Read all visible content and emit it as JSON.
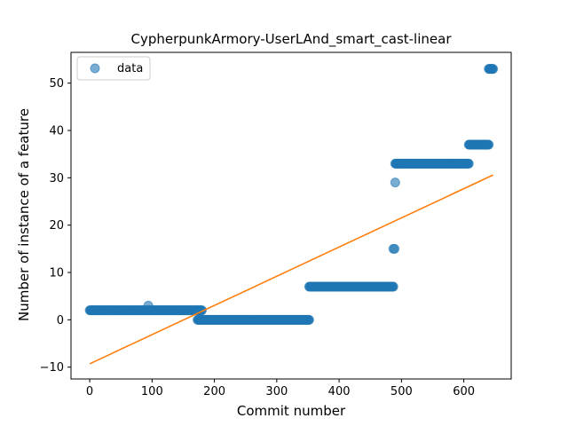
{
  "chart_data": {
    "type": "scatter",
    "title": "CypherpunkArmory-UserLAnd_smart_cast-linear",
    "xlabel": "Commit number",
    "ylabel": "Number of instance of a feature",
    "xlim": [
      -30,
      676
    ],
    "ylim": [
      -12.5,
      56.5
    ],
    "xticks": [
      0,
      100,
      200,
      300,
      400,
      500,
      600
    ],
    "yticks": [
      -10,
      0,
      10,
      20,
      30,
      40,
      50
    ],
    "grid": false,
    "legend_position": "top-left",
    "legend": [
      "data"
    ],
    "colors": {
      "points": "#1f77b4",
      "fit": "#ff7f0e"
    },
    "series": [
      {
        "name": "data",
        "kind": "points",
        "segments": [
          {
            "x_start": 0,
            "x_end": 179,
            "y": 2
          },
          {
            "x_start": 173,
            "x_end": 352,
            "y": 0
          },
          {
            "x_start": 352,
            "x_end": 487,
            "y": 7
          },
          {
            "x_start": 490,
            "x_end": 608,
            "y": 33
          },
          {
            "x_start": 608,
            "x_end": 640,
            "y": 37
          },
          {
            "x_start": 640,
            "x_end": 647,
            "y": 53
          }
        ],
        "points": [
          {
            "x": 94,
            "y": 3
          },
          {
            "x": 487,
            "y": 15
          },
          {
            "x": 489,
            "y": 15
          },
          {
            "x": 490,
            "y": 29
          },
          {
            "x": 180,
            "y": 2
          }
        ]
      },
      {
        "name": "",
        "kind": "line",
        "x": [
          0,
          647
        ],
        "y": [
          -9.3,
          30.6
        ]
      }
    ]
  }
}
